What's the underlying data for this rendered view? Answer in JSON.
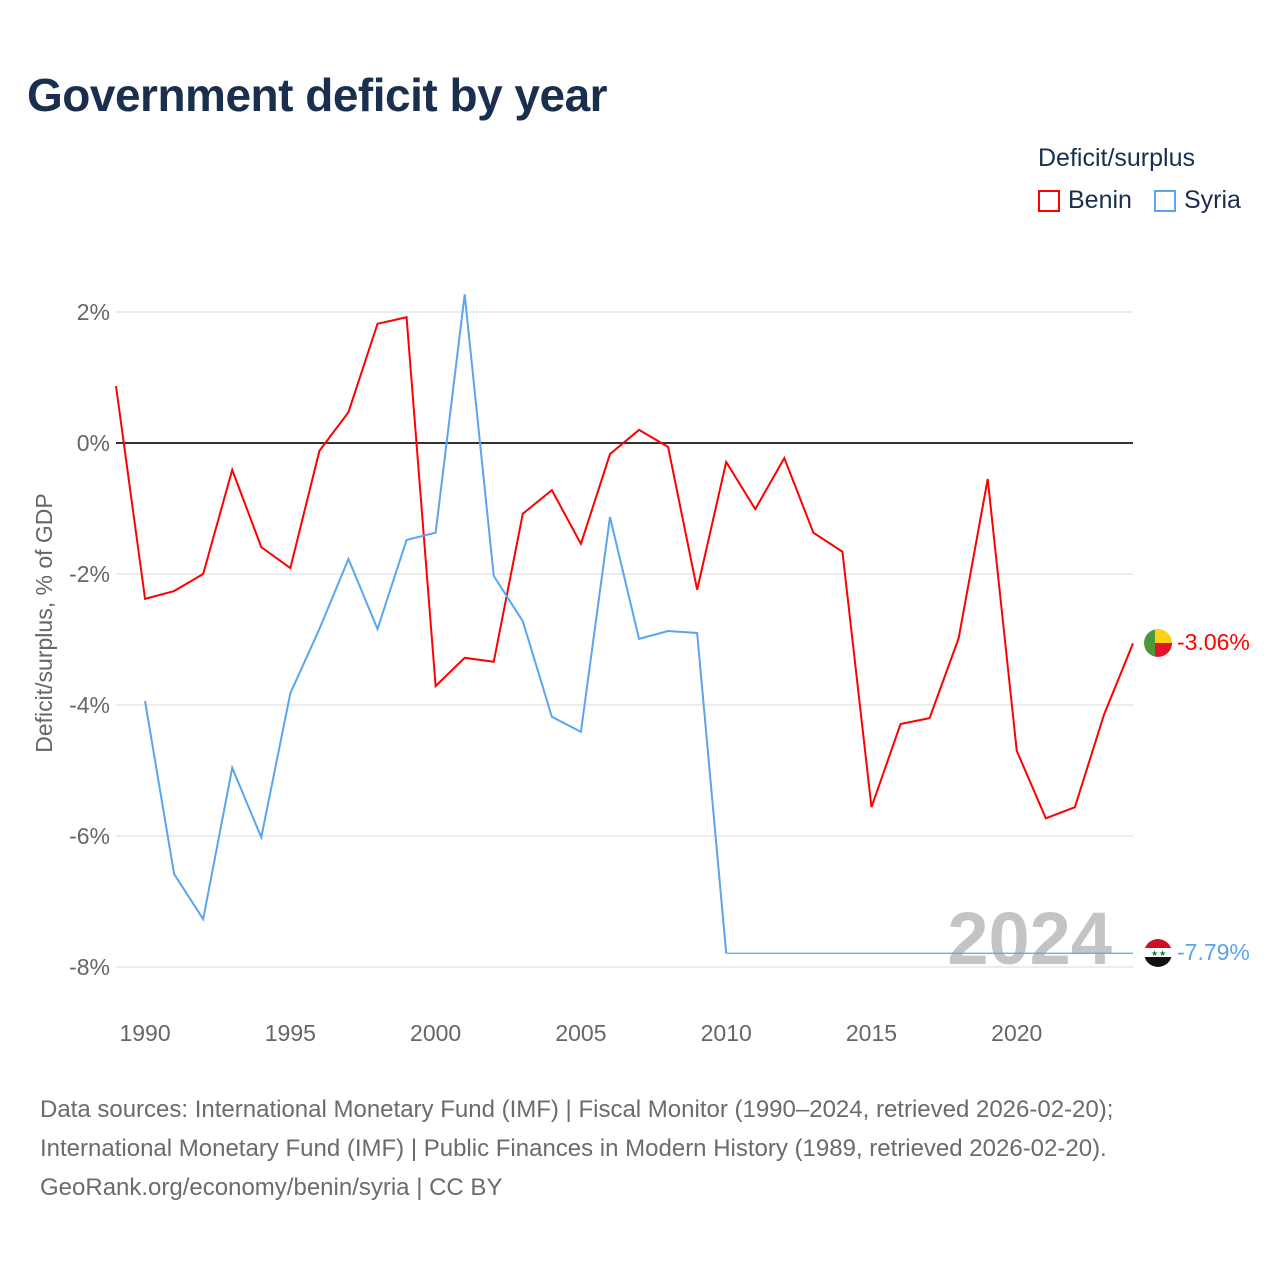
{
  "title": "Government deficit by year",
  "legend": {
    "title": "Deficit/surplus",
    "items": [
      {
        "label": "Benin",
        "color": "#ff0000"
      },
      {
        "label": "Syria",
        "color": "#5aa5f0"
      }
    ]
  },
  "year_watermark": "2024",
  "end_labels": {
    "benin": "-3.06%",
    "syria": "-7.79%"
  },
  "footer": {
    "line1": "Data sources: International Monetary Fund (IMF) | Fiscal Monitor (1990–2024, retrieved 2026-02-20);",
    "line2": "International Monetary Fund (IMF) | Public Finances in Modern History (1989, retrieved 2026-02-20).",
    "line3": "GeoRank.org/economy/benin/syria | CC BY"
  },
  "chart_data": {
    "type": "line",
    "title": "Government deficit by year",
    "ylabel": "Deficit/surplus, % of GDP",
    "xlabel": "",
    "xlim": [
      1989,
      2024
    ],
    "ylim": [
      -8,
      2
    ],
    "x_ticks": [
      "1990",
      "1995",
      "2000",
      "2005",
      "2010",
      "2015",
      "2020"
    ],
    "x_tick_values": [
      1990,
      1995,
      2000,
      2005,
      2010,
      2015,
      2020
    ],
    "y_ticks": [
      "2%",
      "0%",
      "-2%",
      "-4%",
      "-6%",
      "-8%"
    ],
    "y_tick_values": [
      2,
      0,
      -2,
      -4,
      -6,
      -8
    ],
    "grid": true,
    "legend_position": "top-right",
    "series": [
      {
        "name": "Benin",
        "color": "#ff0000",
        "x": [
          1989,
          1990,
          1991,
          1992,
          1993,
          1994,
          1995,
          1996,
          1997,
          1998,
          1999,
          2000,
          2001,
          2002,
          2003,
          2004,
          2005,
          2006,
          2007,
          2008,
          2009,
          2010,
          2011,
          2012,
          2013,
          2014,
          2015,
          2016,
          2017,
          2018,
          2019,
          2020,
          2021,
          2022,
          2023,
          2024
        ],
        "values": [
          0.87,
          -2.38,
          -2.26,
          -2.0,
          -0.41,
          -1.59,
          -1.91,
          -0.12,
          0.47,
          1.82,
          1.92,
          -3.71,
          -3.28,
          -3.34,
          -1.08,
          -0.72,
          -1.54,
          -0.17,
          0.2,
          -0.06,
          -2.24,
          -0.29,
          -1.01,
          -0.23,
          -1.37,
          -1.66,
          -5.56,
          -4.29,
          -4.2,
          -2.98,
          -0.55,
          -4.7,
          -5.73,
          -5.56,
          -4.15,
          -3.06
        ]
      },
      {
        "name": "Syria",
        "color": "#5aa5f0",
        "x": [
          1990,
          1991,
          1992,
          1993,
          1994,
          1995,
          1996,
          1997,
          1998,
          1999,
          2000,
          2001,
          2002,
          2003,
          2004,
          2005,
          2006,
          2007,
          2008,
          2009,
          2010,
          2024
        ],
        "values": [
          -3.94,
          -6.58,
          -7.27,
          -4.96,
          -6.02,
          -3.82,
          -2.84,
          -1.77,
          -2.84,
          -1.48,
          -1.37,
          2.27,
          -2.03,
          -2.72,
          -4.18,
          -4.41,
          -1.13,
          -2.99,
          -2.87,
          -2.9,
          -7.79,
          -7.79
        ]
      }
    ]
  }
}
